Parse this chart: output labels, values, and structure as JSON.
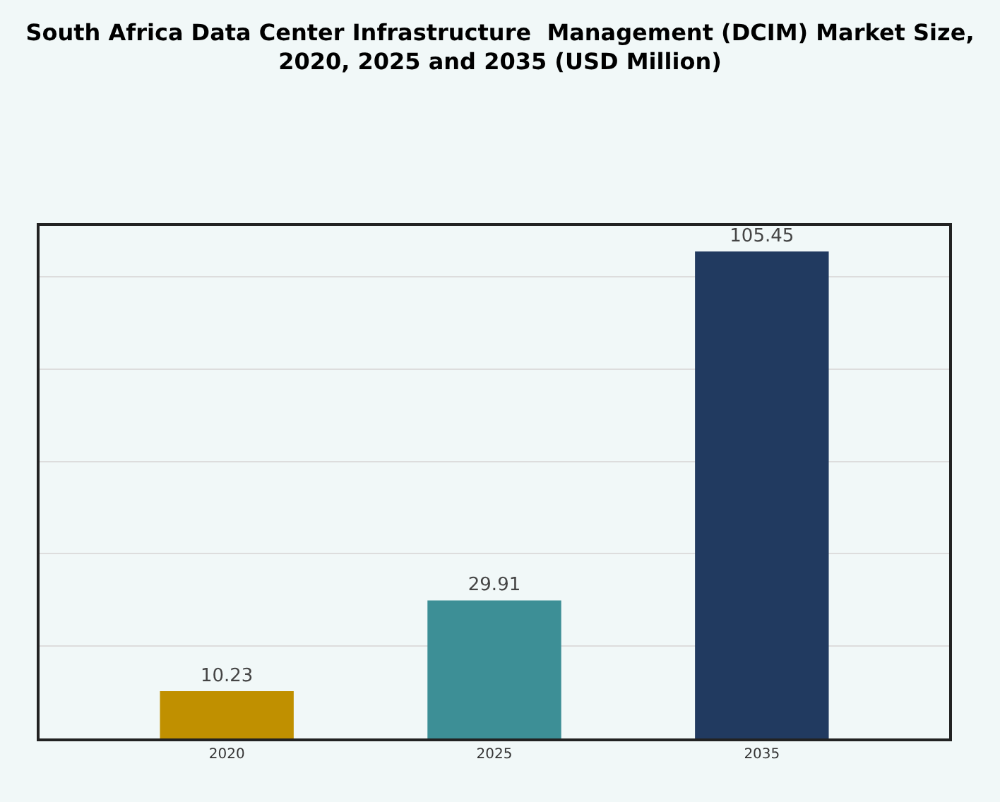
{
  "chart_data": {
    "type": "bar",
    "title": "South Africa Data Center Infrastructure  Management (DCIM) Market Size,\n2020, 2025 and 2035 (USD Million)",
    "categories": [
      "2020",
      "2025",
      "2035"
    ],
    "values": [
      10.23,
      29.91,
      105.45
    ],
    "colors": [
      "#c09000",
      "#3d8f96",
      "#213a60"
    ],
    "data_labels": true,
    "grid": "y",
    "tick_labels": "x"
  }
}
